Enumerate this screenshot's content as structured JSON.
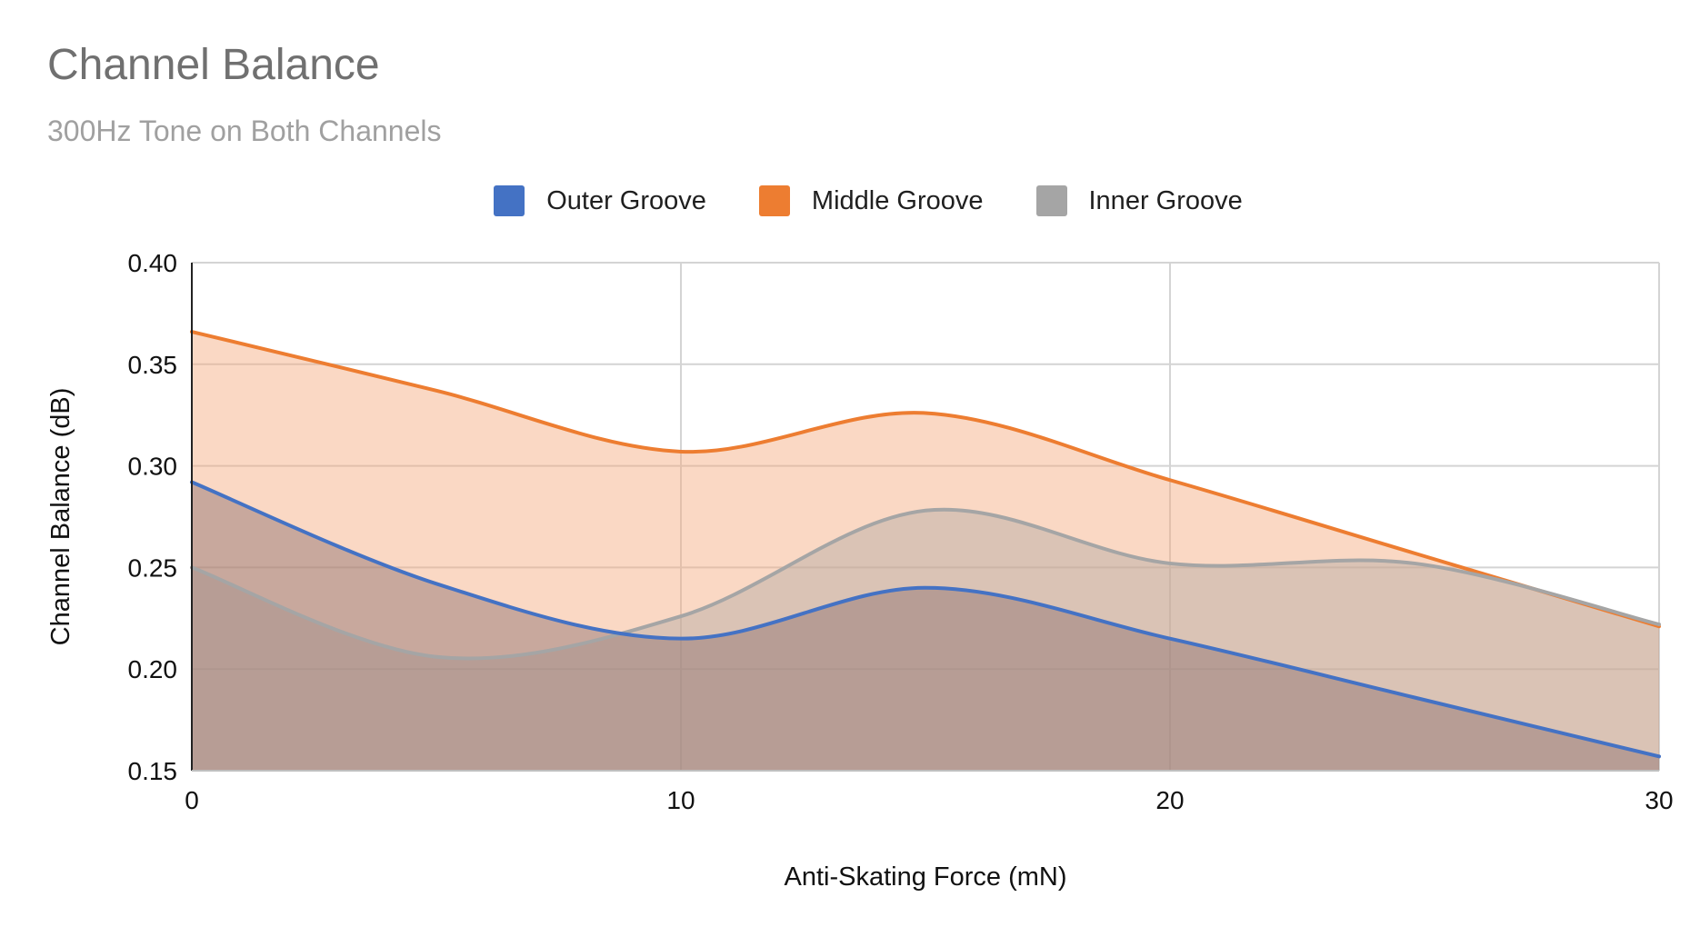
{
  "chart_data": {
    "type": "area",
    "title": "Channel Balance",
    "subtitle": "300Hz Tone on Both Channels",
    "xlabel": "Anti-Skating Force (mN)",
    "ylabel": "Channel Balance (dB)",
    "xlim": [
      0,
      30
    ],
    "ylim": [
      0.15,
      0.4
    ],
    "x_ticks": [
      "0",
      "10",
      "20",
      "30"
    ],
    "y_ticks": [
      "0.15",
      "0.20",
      "0.25",
      "0.30",
      "0.35",
      "0.40"
    ],
    "grid": true,
    "legend_position": "top",
    "x": [
      0,
      5,
      10,
      15,
      20,
      25,
      30
    ],
    "series": [
      {
        "name": "Outer Groove",
        "color": "#4472C4",
        "fill": "rgba(140,110,110,0.45)",
        "values": [
          0.292,
          0.242,
          0.215,
          0.24,
          0.215,
          0.186,
          0.157
        ]
      },
      {
        "name": "Middle Groove",
        "color": "#ED7D31",
        "fill": "rgba(244,168,124,0.45)",
        "values": [
          0.366,
          0.337,
          0.307,
          0.326,
          0.293,
          0.257,
          0.221
        ]
      },
      {
        "name": "Inner Groove",
        "color": "#A5A5A5",
        "fill": "rgba(180,170,165,0.45)",
        "values": [
          0.25,
          0.206,
          0.226,
          0.278,
          0.252,
          0.252,
          0.222
        ]
      }
    ]
  }
}
